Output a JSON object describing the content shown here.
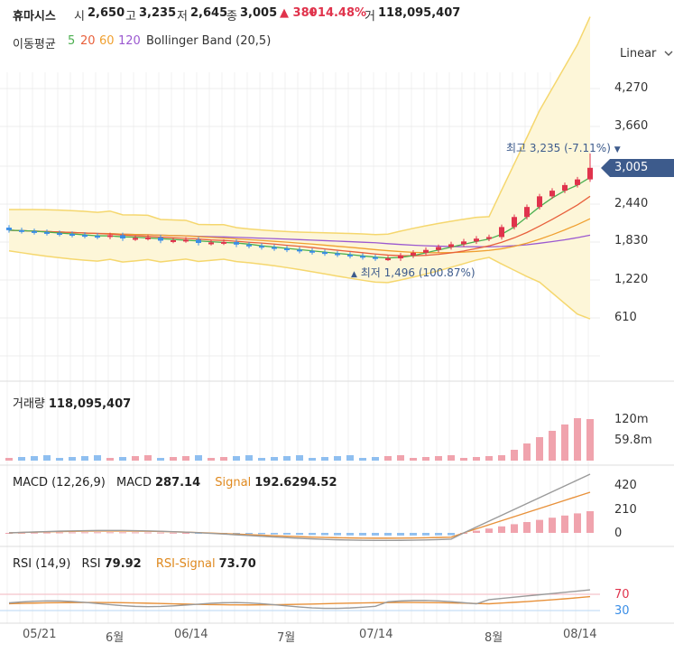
{
  "header": {
    "name": "휴마시스",
    "open_label": "시",
    "open": "2,650",
    "high_label": "고",
    "high": "3,235",
    "low_label": "저",
    "low": "2,645",
    "close_label": "종",
    "close": "3,005",
    "change": "▲ 380",
    "change_pct": "+14.48%",
    "volume_label": "거",
    "volume": "118,095,407"
  },
  "ma_legend": {
    "label": "이동평균",
    "ma5": "5",
    "ma20": "20",
    "ma60": "60",
    "ma120": "120",
    "bollinger": "Bollinger Band (20,5)"
  },
  "scale_selector": {
    "value": "Linear",
    "icon": "chevron-down-icon"
  },
  "price_axis": {
    "ticks": [
      "4,270",
      "3,660",
      "3,005",
      "2,440",
      "1,830",
      "1,220",
      "610"
    ],
    "current_price_tag": "3,005"
  },
  "annotations": {
    "high": "최고 3,235 (-7.11%)",
    "high_marker": "▼",
    "low": "최저 1,496 (100.87%)",
    "low_marker": "▲"
  },
  "volume_panel": {
    "label": "거래량",
    "value": "118,095,407",
    "ticks": [
      "120m",
      "59.8m"
    ]
  },
  "macd_panel": {
    "label": "MACD (12,26,9)",
    "macd_label": "MACD",
    "macd_value": "287.14",
    "signal_label": "Signal",
    "signal_value": "192.6294.52",
    "ticks": [
      "420",
      "210",
      "0"
    ]
  },
  "rsi_panel": {
    "label": "RSI (14,9)",
    "rsi_label": "RSI",
    "rsi_value": "79.92",
    "signal_label": "RSI-Signal",
    "signal_value": "73.70",
    "ticks": [
      "70",
      "30"
    ]
  },
  "x_axis": {
    "labels": [
      "05/21",
      "6월",
      "06/14",
      "7월",
      "07/14",
      "8월",
      "08/14"
    ]
  },
  "colors": {
    "up": "#e0334c",
    "down": "#3a8ee6",
    "ma5": "#4caf50",
    "ma20": "#e8603c",
    "ma60": "#f0a030",
    "ma120": "#9b59d0",
    "bollinger": "#f5d76e",
    "price_tag": "#3d5b8c"
  },
  "chart_data": {
    "type": "candlestick",
    "x_labels": [
      "05/21",
      "6월",
      "06/14",
      "7월",
      "07/14",
      "8월",
      "08/14"
    ],
    "y_ticks": [
      610,
      1220,
      1830,
      2440,
      3005,
      3660,
      4270
    ],
    "high": 3235,
    "low": 1496,
    "last_close": 3005
  }
}
